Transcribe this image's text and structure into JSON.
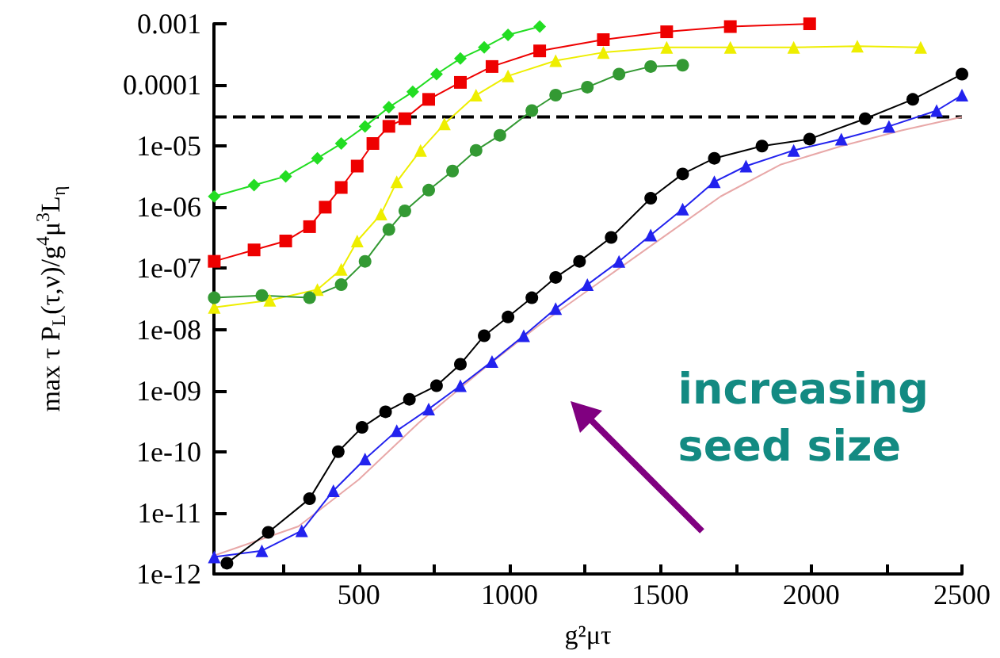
{
  "chart_data": {
    "type": "line",
    "xlabel": "g²μτ",
    "ylabel": "max τ P$_{L}$(τ,ν)/g$^{4}$μ$^{3}$L$_{η}$",
    "log": "y",
    "grid": false,
    "xlim": [
      20,
      2500
    ],
    "xticks": [
      {
        "value": 250,
        "label": null
      },
      500,
      {
        "value": 750,
        "label": null
      },
      1000,
      {
        "value": 1250,
        "label": null
      },
      1500,
      {
        "value": 1750,
        "label": null
      },
      2000,
      {
        "value": 2250,
        "label": null
      },
      2500
    ],
    "ylim": [
      1e-12,
      0.001
    ],
    "yticks": [
      {
        "value": 1e-12,
        "label": "1e-12"
      },
      {
        "value": 1e-11,
        "label": "1e-11"
      },
      {
        "value": 1e-10,
        "label": "1e-10"
      },
      {
        "value": 1e-09,
        "label": "1e-09"
      },
      {
        "value": 1e-08,
        "label": "1e-08"
      },
      {
        "value": 1e-07,
        "label": "1e-07"
      },
      {
        "value": 1e-06,
        "label": "1e-06"
      },
      {
        "value": 1e-05,
        "label": "1e-05"
      },
      0.0001,
      0.001
    ],
    "ref_lines": [
      {
        "axis": "y",
        "value": 3e-05,
        "color": "#000000",
        "line_style": "dashed"
      }
    ],
    "annotations": [
      "increasing seed size"
    ],
    "series": [
      {
        "color": "#22dd22",
        "marker": "diamond",
        "x": [
          21,
          153,
          258,
          363,
          442,
          521,
          600,
          679,
          758,
          837,
          916,
          995,
          1100
        ],
        "values": [
          1.5e-06,
          2.3e-06,
          3.2e-06,
          6.3e-06,
          1.1e-05,
          2.1e-05,
          4.3e-05,
          7.7e-05,
          0.00015,
          0.00027,
          0.00041,
          0.00066,
          0.0009
        ]
      },
      {
        "color": "#ee0000",
        "marker": "square",
        "x": [
          21,
          153,
          258,
          337,
          389,
          442,
          495,
          547,
          600,
          653,
          732,
          837,
          942,
          1100,
          1311,
          1521,
          1732,
          1995
        ],
        "values": [
          1.3e-07,
          2e-07,
          2.8e-07,
          4.8e-07,
          1e-06,
          2.1e-06,
          4.7e-06,
          1.1e-05,
          2.1e-05,
          2.8e-05,
          5.8e-05,
          0.00011,
          0.0002,
          0.00036,
          0.00055,
          0.00074,
          0.0009,
          0.001
        ]
      },
      {
        "color": "#eeee00",
        "marker": "triangle",
        "x": [
          21,
          205,
          363,
          442,
          495,
          574,
          626,
          705,
          784,
          889,
          995,
          1153,
          1311,
          1521,
          1732,
          1942,
          2153,
          2363
        ],
        "values": [
          2.3e-08,
          3e-08,
          4.5e-08,
          9.6e-08,
          2.8e-07,
          7.7e-07,
          2.6e-06,
          8.5e-06,
          2.3e-05,
          6.8e-05,
          0.00014,
          0.00025,
          0.00034,
          0.00041,
          0.00041,
          0.00041,
          0.00043,
          0.00041
        ]
      },
      {
        "color": "#339933",
        "marker": "circle",
        "x": [
          21,
          179,
          337,
          442,
          521,
          600,
          653,
          732,
          811,
          889,
          968,
          1074,
          1153,
          1258,
          1363,
          1468,
          1574
        ],
        "values": [
          3.3e-08,
          3.6e-08,
          3.3e-08,
          5.4e-08,
          1.3e-07,
          4.3e-07,
          8.7e-07,
          1.9e-06,
          3.9e-06,
          8.5e-06,
          1.5e-05,
          3.8e-05,
          6.8e-05,
          9.2e-05,
          0.00015,
          0.0002,
          0.00021
        ]
      },
      {
        "color": "#e8a8a8",
        "marker": "none",
        "x": [
          21,
          300,
          500,
          700,
          900,
          1100,
          1300,
          1500,
          1700,
          1900,
          2100,
          2300,
          2500
        ],
        "values": [
          2e-12,
          6e-12,
          3.5e-11,
          3e-10,
          2e-09,
          1.2e-08,
          6e-08,
          3e-07,
          1.5e-06,
          5e-06,
          1e-05,
          1.8e-05,
          3e-05
        ]
      },
      {
        "color": "#2222ee",
        "marker": "triangle",
        "x": [
          21,
          179,
          311,
          416,
          521,
          626,
          732,
          837,
          942,
          1047,
          1153,
          1258,
          1363,
          1468,
          1574,
          1679,
          1784,
          1942,
          2100,
          2258,
          2416,
          2500
        ],
        "values": [
          1.9e-12,
          2.4e-12,
          5.1e-12,
          2.3e-11,
          7.6e-11,
          2.2e-10,
          5e-10,
          1.2e-09,
          3e-09,
          7.9e-09,
          2.2e-08,
          5.4e-08,
          1.3e-07,
          3.5e-07,
          9.3e-07,
          2.6e-06,
          4.7e-06,
          8.5e-06,
          1.3e-05,
          2.1e-05,
          3.8e-05,
          6.8e-05
        ]
      },
      {
        "color": "#000000",
        "marker": "circle",
        "x": [
          63,
          200,
          337,
          432,
          511,
          589,
          668,
          758,
          837,
          916,
          995,
          1074,
          1153,
          1232,
          1337,
          1468,
          1574,
          1679,
          1837,
          1995,
          2179,
          2337,
          2500
        ],
        "values": [
          1.5e-12,
          4.8e-12,
          1.7e-11,
          1e-10,
          2.5e-10,
          4.5e-10,
          7.2e-10,
          1.2e-09,
          2.7e-09,
          7.9e-09,
          1.6e-08,
          3.3e-08,
          7.1e-08,
          1.3e-07,
          3.2e-07,
          1.4e-06,
          3.5e-06,
          6.3e-06,
          1e-05,
          1.3e-05,
          2.8e-05,
          5.8e-05,
          0.00015
        ]
      }
    ]
  }
}
